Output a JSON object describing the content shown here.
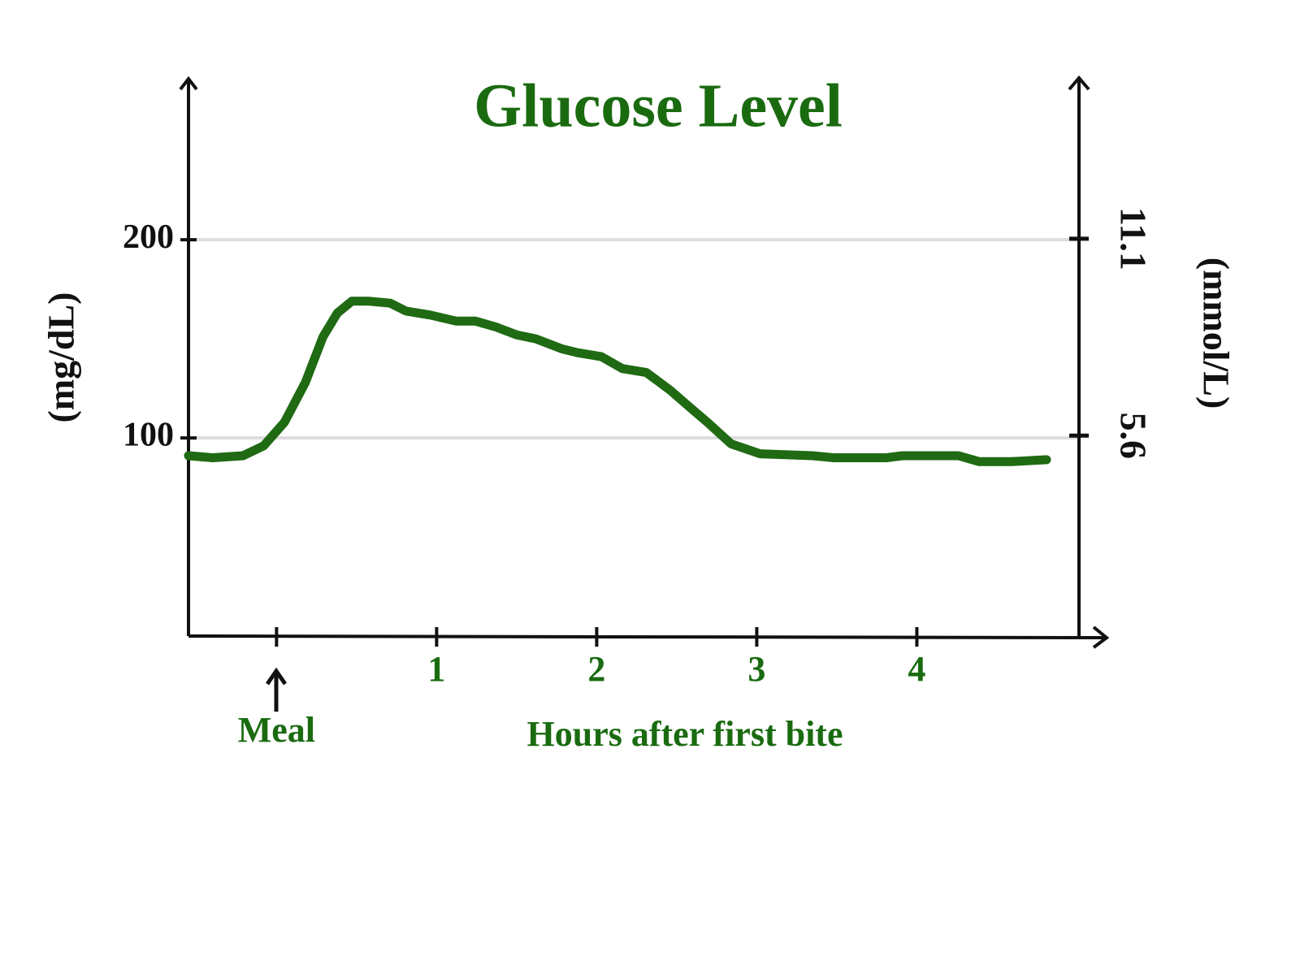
{
  "chart_data": {
    "type": "line",
    "title": "Glucose Level",
    "xlabel": "Hours after first bite",
    "ylabel": "(mg/dL)",
    "y2label": "(mmol/L)",
    "x": [
      -0.55,
      -0.4,
      -0.21,
      -0.08,
      0.05,
      0.18,
      0.29,
      0.38,
      0.47,
      0.58,
      0.71,
      0.81,
      0.96,
      1.12,
      1.24,
      1.37,
      1.5,
      1.62,
      1.78,
      1.88,
      2.03,
      2.16,
      2.31,
      2.46,
      2.56,
      2.69,
      2.84,
      3.02,
      3.35,
      3.48,
      3.81,
      3.91,
      4.26,
      4.39,
      4.59,
      4.81
    ],
    "values": [
      91,
      90,
      91,
      96,
      108,
      128,
      151,
      163,
      169,
      169,
      168,
      164,
      162,
      159,
      159,
      156,
      152,
      150,
      145,
      143,
      141,
      135,
      133,
      124,
      117,
      108,
      97,
      92,
      91,
      90,
      90,
      91,
      91,
      88,
      88,
      89
    ],
    "color": "#1f6a12",
    "xlim": [
      -0.55,
      5.15
    ],
    "xticks": [
      {
        "value": 0,
        "label": "Meal"
      },
      1,
      2,
      3,
      4
    ],
    "ylim": [
      0,
      280
    ],
    "yticks": [
      100,
      200
    ],
    "y2lim": [
      0,
      15.5
    ],
    "y2ticks": [
      5.6,
      11.1
    ],
    "grid": true
  }
}
